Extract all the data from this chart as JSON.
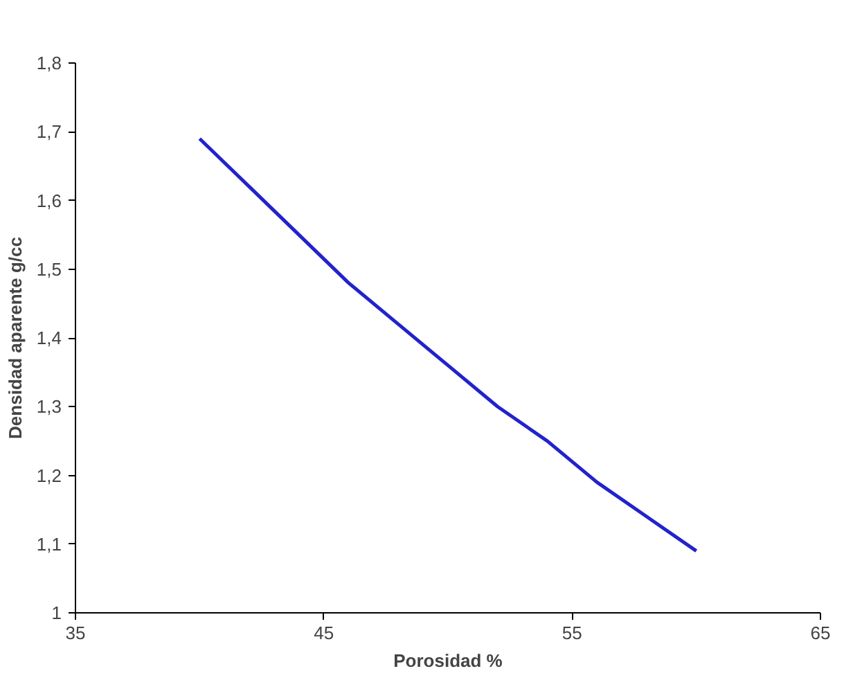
{
  "chart_data": {
    "type": "line",
    "xlabel": "Porosidad %",
    "ylabel": "Densidad aparente g/cc",
    "x": [
      40,
      42,
      44,
      46,
      48,
      50,
      52,
      54,
      56,
      58,
      60
    ],
    "series": [
      {
        "color": "#2222cc",
        "values": [
          1.69,
          1.62,
          1.55,
          1.48,
          1.42,
          1.36,
          1.3,
          1.25,
          1.19,
          1.14,
          1.09
        ]
      }
    ],
    "xlim": [
      35,
      65
    ],
    "ylim": [
      1,
      1.8
    ],
    "xticks": [
      35,
      45,
      55,
      65
    ],
    "yticks": [
      1,
      {
        "value": 1.1,
        "label": "1,1"
      },
      {
        "value": 1.2,
        "label": "1,2"
      },
      {
        "value": 1.3,
        "label": "1,3"
      },
      {
        "value": 1.4,
        "label": "1,4"
      },
      {
        "value": 1.5,
        "label": "1,5"
      },
      {
        "value": 1.6,
        "label": "1,6"
      },
      {
        "value": 1.7,
        "label": "1,7"
      },
      {
        "value": 1.8,
        "label": "1,8"
      }
    ],
    "grid": false,
    "marker": "none",
    "line_style": "solid"
  }
}
